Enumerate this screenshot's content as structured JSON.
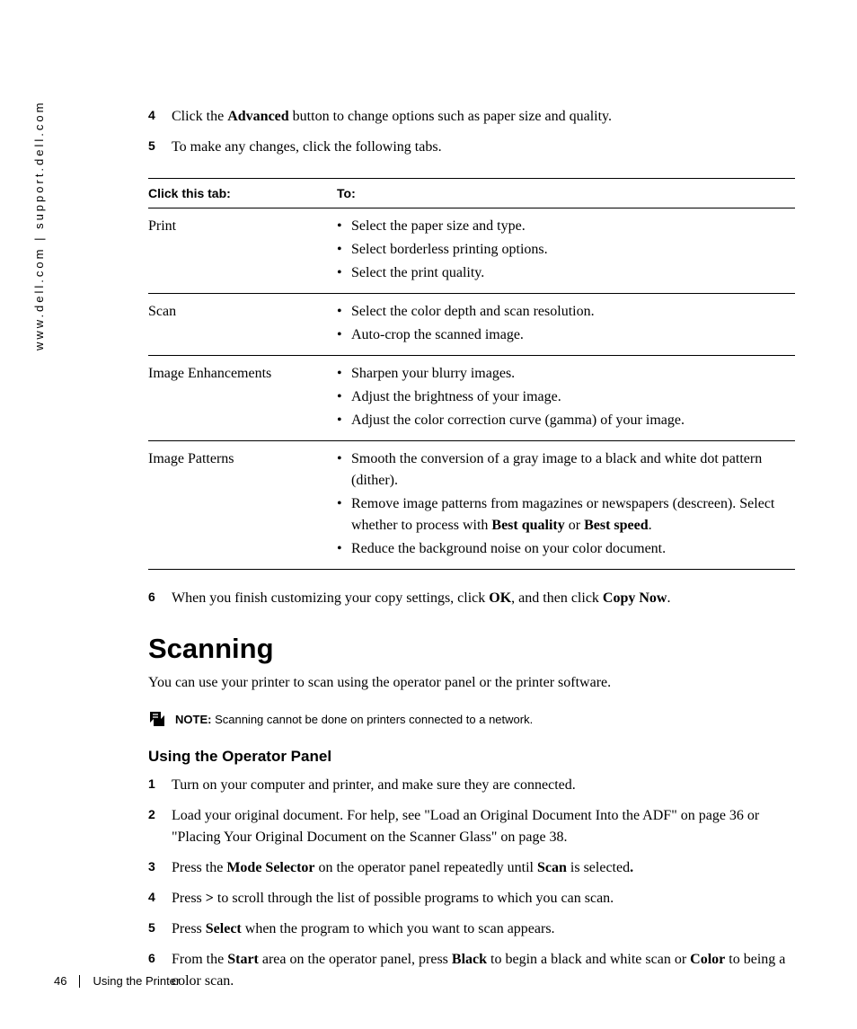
{
  "sidebar": {
    "text": "www.dell.com | support.dell.com"
  },
  "steps_top": [
    {
      "num": "4",
      "pre": "Click the ",
      "bold": "Advanced",
      "post": " button to change options such as paper size and quality."
    },
    {
      "num": "5",
      "pre": "To make any changes, click the following tabs.",
      "bold": "",
      "post": ""
    }
  ],
  "table": {
    "header1": "Click this tab:",
    "header2": "To:",
    "rows": [
      {
        "tab": "Print",
        "items": [
          "Select the paper size and type.",
          "Select borderless printing options.",
          "Select the print quality."
        ]
      },
      {
        "tab": "Scan",
        "items": [
          "Select the color depth and scan resolution.",
          "Auto-crop the scanned image."
        ]
      },
      {
        "tab": "Image Enhancements",
        "items": [
          "Sharpen your blurry images.",
          "Adjust the brightness of your image.",
          "Adjust the color correction curve (gamma) of your image."
        ]
      },
      {
        "tab": "Image Patterns",
        "items": [
          "Smooth the conversion of a gray image to a black and white dot pattern (dither).",
          "Remove image patterns from magazines or newspapers (descreen). Select whether to process with <b>Best quality</b> or <b>Best speed</b>.",
          "Reduce the background noise on your color document."
        ]
      }
    ]
  },
  "step6": {
    "num": "6",
    "pre": "When you finish customizing your copy settings, click ",
    "b1": "OK",
    "mid": ", and then click ",
    "b2": "Copy Now",
    "post": "."
  },
  "heading": "Scanning",
  "intro": "You can use your printer to scan using the operator panel or the printer software.",
  "note": {
    "label": "NOTE:",
    "text": " Scanning cannot be done on printers connected to a network."
  },
  "subheading": "Using the Operator Panel",
  "steps_panel": [
    {
      "num": "1",
      "html": "Turn on your computer and printer, and make sure they are connected."
    },
    {
      "num": "2",
      "html": "Load your original document. For help, see \"Load an Original Document Into the ADF\" on page 36 or \"Placing Your Original Document on the Scanner Glass\" on page 38."
    },
    {
      "num": "3",
      "html": "Press the <b>Mode Selector</b> on the operator panel repeatedly until <b>Scan</b> is selected<b>.</b>"
    },
    {
      "num": "4",
      "html": "Press <b>&gt;</b> to scroll through the list of possible programs to which you can scan."
    },
    {
      "num": "5",
      "html": "Press <b>Select</b> when the program to which you want to scan appears."
    },
    {
      "num": "6",
      "html": "From the <b>Start</b> area on the operator panel, press <b>Black</b> to begin a black and white scan or <b>Color</b> to being a color scan."
    }
  ],
  "footer": {
    "page": "46",
    "section": "Using the Printer"
  }
}
